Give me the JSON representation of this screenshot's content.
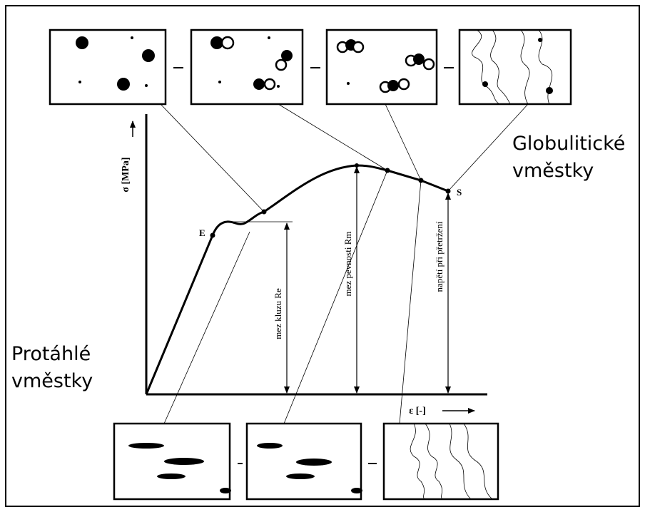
{
  "axes": {
    "y_label": "σ [MPa]",
    "x_label": "ε [-]"
  },
  "points": [
    "E",
    "S"
  ],
  "annotations": [
    "mez kluzu Re",
    "mez pevnosti Rm",
    "napětí při přetržení"
  ],
  "groups": {
    "globular": [
      "Globulitické",
      "vměstky"
    ],
    "elongated": [
      "Protáhlé",
      "vměstky"
    ]
  }
}
